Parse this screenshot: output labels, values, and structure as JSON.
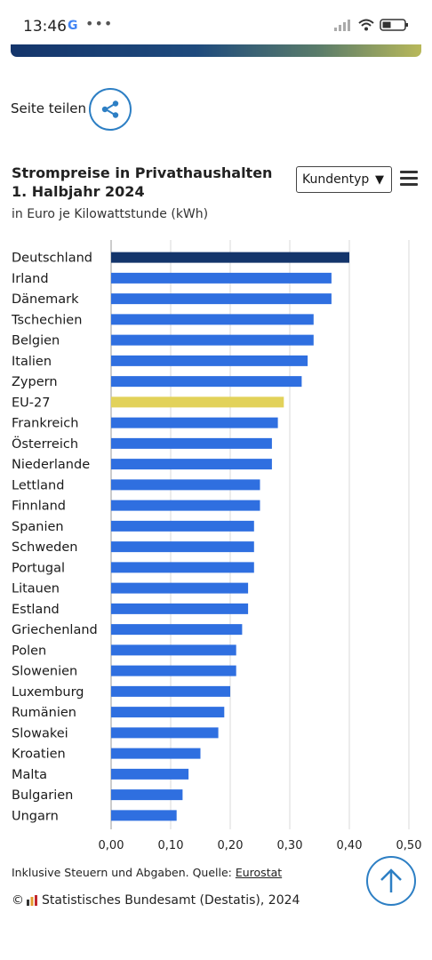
{
  "status_bar": {
    "time": "13:46",
    "google_glyph": "G",
    "dots": "•••"
  },
  "share": {
    "label": "Seite teilen"
  },
  "chart_header": {
    "title_line1": "Strompreise in Privathaushalten",
    "title_line2": "1. Halbjahr 2024",
    "subtitle": "in Euro je Kilowattstunde (kWh)",
    "dropdown_label": "Kundentyp",
    "dropdown_arrow": "▼"
  },
  "colors": {
    "default_bar": "#2f6fe0",
    "highlight_germany": "#14356b",
    "highlight_eu": "#e2d25a",
    "accent": "#2d7fc4"
  },
  "chart_data": {
    "type": "bar",
    "orientation": "horizontal",
    "title": "Strompreise in Privathaushalten 1. Halbjahr 2024",
    "subtitle": "in Euro je Kilowattstunde (kWh)",
    "xlabel": "",
    "ylabel": "",
    "xlim": [
      0,
      0.5
    ],
    "xticks": [
      "0,00",
      "0,10",
      "0,20",
      "0,30",
      "0,40",
      "0,50"
    ],
    "grid": "vertical",
    "categories": [
      "Deutschland",
      "Irland",
      "Dänemark",
      "Tschechien",
      "Belgien",
      "Italien",
      "Zypern",
      "EU-27",
      "Frankreich",
      "Österreich",
      "Niederlande",
      "Lettland",
      "Finnland",
      "Spanien",
      "Schweden",
      "Portugal",
      "Litauen",
      "Estland",
      "Griechenland",
      "Polen",
      "Slowenien",
      "Luxemburg",
      "Rumänien",
      "Slowakei",
      "Kroatien",
      "Malta",
      "Bulgarien",
      "Ungarn"
    ],
    "values": [
      0.4,
      0.37,
      0.37,
      0.34,
      0.34,
      0.33,
      0.32,
      0.29,
      0.28,
      0.27,
      0.27,
      0.25,
      0.25,
      0.24,
      0.24,
      0.24,
      0.23,
      0.23,
      0.22,
      0.21,
      0.21,
      0.2,
      0.19,
      0.18,
      0.15,
      0.13,
      0.12,
      0.11
    ],
    "bar_colors": [
      "#14356b",
      "#2f6fe0",
      "#2f6fe0",
      "#2f6fe0",
      "#2f6fe0",
      "#2f6fe0",
      "#2f6fe0",
      "#e2d25a",
      "#2f6fe0",
      "#2f6fe0",
      "#2f6fe0",
      "#2f6fe0",
      "#2f6fe0",
      "#2f6fe0",
      "#2f6fe0",
      "#2f6fe0",
      "#2f6fe0",
      "#2f6fe0",
      "#2f6fe0",
      "#2f6fe0",
      "#2f6fe0",
      "#2f6fe0",
      "#2f6fe0",
      "#2f6fe0",
      "#2f6fe0",
      "#2f6fe0",
      "#2f6fe0",
      "#2f6fe0"
    ]
  },
  "footer": {
    "note": "Inklusive Steuern und Abgaben. Quelle: ",
    "source_link": "Eurostat",
    "credit": "Statistisches Bundesamt (Destatis), 2024",
    "copyright": "©"
  },
  "icons": {
    "share": "share-icon",
    "menu": "hamburger-menu-icon",
    "scroll_top": "arrow-up-icon"
  }
}
